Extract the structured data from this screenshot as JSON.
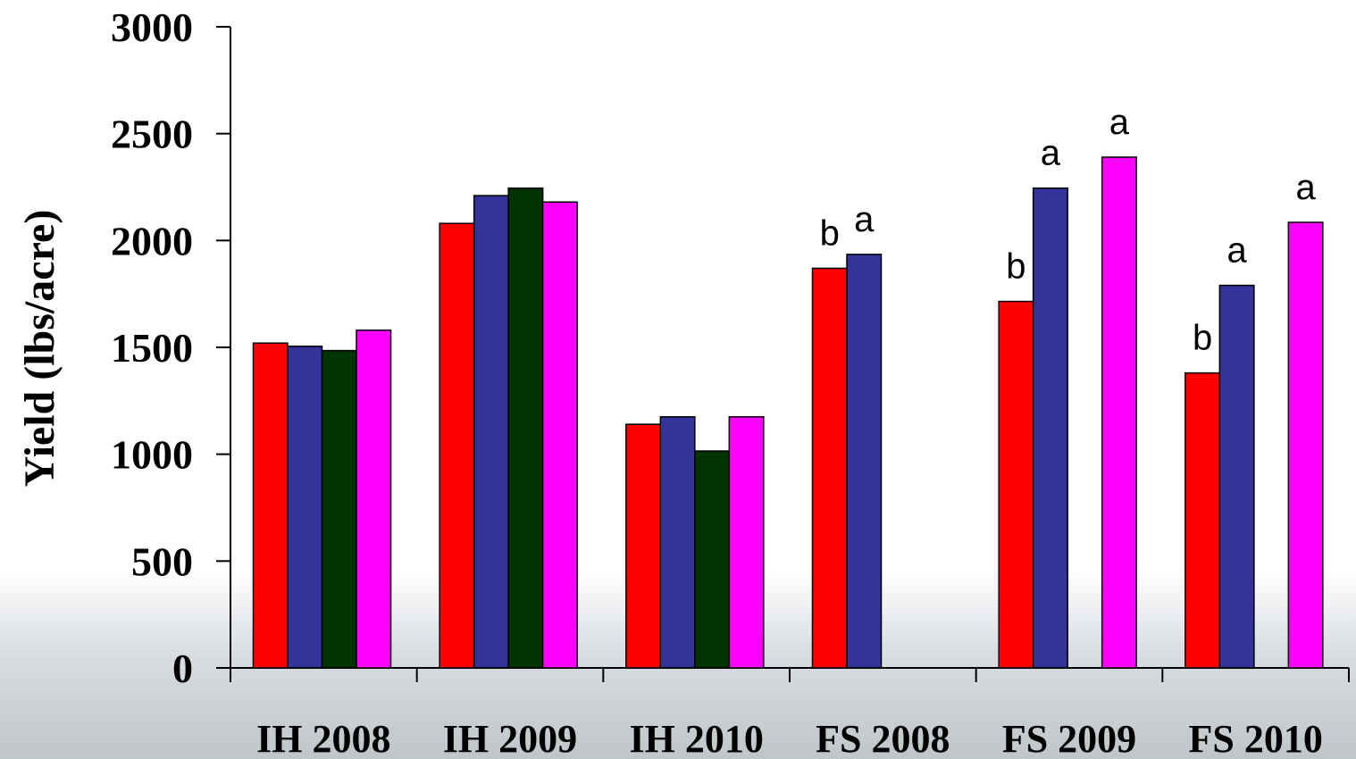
{
  "chart_data": {
    "type": "bar",
    "title": "",
    "xlabel": "",
    "ylabel": "Yield (lbs/acre)",
    "ylim": [
      0,
      3000
    ],
    "yticks": [
      0,
      500,
      1000,
      1500,
      2000,
      2500,
      3000
    ],
    "categories": [
      "IH 2008",
      "IH 2009",
      "IH 2010",
      "FS 2008",
      "FS 2009",
      "FS 2010"
    ],
    "series": [
      {
        "color": "#ff0000",
        "values": [
          1520,
          2080,
          1140,
          1870,
          1715,
          1380
        ]
      },
      {
        "color": "#333399",
        "values": [
          1505,
          2210,
          1175,
          1935,
          2245,
          1790
        ]
      },
      {
        "color": "#003300",
        "values": [
          1485,
          2245,
          1015,
          null,
          null,
          null
        ]
      },
      {
        "color": "#ff00ff",
        "values": [
          1580,
          2180,
          1175,
          null,
          2390,
          2085
        ]
      }
    ],
    "annotations": [
      {
        "category": 3,
        "series": 0,
        "text": "b"
      },
      {
        "category": 3,
        "series": 1,
        "text": "a"
      },
      {
        "category": 4,
        "series": 0,
        "text": "b"
      },
      {
        "category": 4,
        "series": 1,
        "text": "a"
      },
      {
        "category": 4,
        "series": 3,
        "text": "a"
      },
      {
        "category": 5,
        "series": 0,
        "text": "b"
      },
      {
        "category": 5,
        "series": 1,
        "text": "a"
      },
      {
        "category": 5,
        "series": 3,
        "text": "a"
      }
    ],
    "grid": false,
    "legend": "none"
  }
}
